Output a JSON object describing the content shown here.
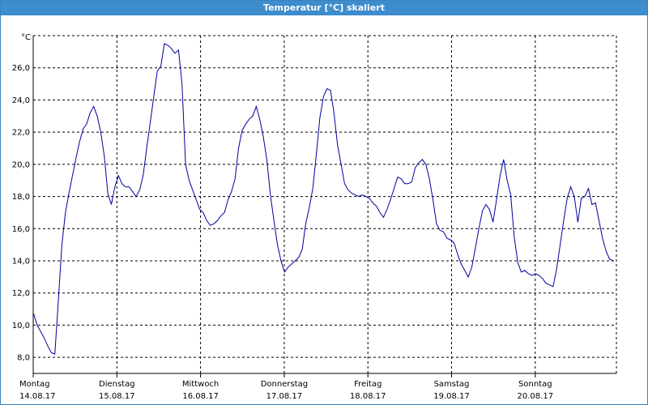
{
  "window": {
    "title": "Temperatur [°C] skaliert"
  },
  "chart_data": {
    "type": "line",
    "title": "Temperatur [°C] skaliert",
    "ylabel": "°C",
    "xlabel": "",
    "ylim": [
      7.0,
      28.0
    ],
    "y_ticks": [
      "8,0",
      "10,0",
      "12,0",
      "14,0",
      "16,0",
      "18,0",
      "20,0",
      "22,0",
      "24,0",
      "26,0"
    ],
    "y_tick_values": [
      8,
      10,
      12,
      14,
      16,
      18,
      20,
      22,
      24,
      26
    ],
    "x_ticks": [
      {
        "day": "Montag",
        "date": "14.08.17"
      },
      {
        "day": "Dienstag",
        "date": "15.08.17"
      },
      {
        "day": "Mittwoch",
        "date": "16.08.17"
      },
      {
        "day": "Donnerstag",
        "date": "17.08.17"
      },
      {
        "day": "Freitag",
        "date": "18.08.17"
      },
      {
        "day": "Samstag",
        "date": "19.08.17"
      },
      {
        "day": "Sonntag",
        "date": "20.08.17"
      }
    ],
    "grid": true,
    "line_color": "#0000a0",
    "series": [
      {
        "values": [
          10.7,
          10.0,
          9.6,
          9.2,
          8.7,
          8.3,
          8.2,
          11.5,
          15.0,
          17.0,
          18.2,
          19.3,
          20.4,
          21.4,
          22.2,
          22.5,
          23.2,
          23.6,
          23.0,
          22.0,
          20.5,
          18.2,
          17.5,
          18.6,
          19.3,
          18.8,
          18.6,
          18.6,
          18.3,
          18.0,
          18.4,
          19.3,
          21.0,
          22.6,
          24.2,
          25.8,
          26.1,
          27.5,
          27.4,
          27.2,
          26.9,
          27.1,
          25.0,
          20.0,
          19.0,
          18.4,
          17.8,
          17.2,
          17.0,
          16.5,
          16.2,
          16.3,
          16.5,
          16.8,
          17.0,
          17.8,
          18.3,
          19.1,
          21.0,
          22.1,
          22.5,
          22.8,
          23.0,
          23.6,
          22.8,
          21.7,
          20.3,
          18.1,
          16.5,
          15.0,
          14.0,
          13.3,
          13.6,
          13.8,
          14.0,
          14.2,
          14.7,
          16.3,
          17.3,
          18.5,
          20.6,
          22.9,
          24.2,
          24.7,
          24.6,
          23.2,
          21.2,
          20.0,
          18.8,
          18.4,
          18.2,
          18.1,
          18.0,
          18.1,
          18.0,
          17.9,
          17.6,
          17.4,
          17.0,
          16.7,
          17.2,
          17.8,
          18.5,
          19.2,
          19.1,
          18.8,
          18.8,
          18.9,
          19.8,
          20.1,
          20.3,
          20.0,
          19.1,
          17.8,
          16.3,
          15.9,
          15.8,
          15.4,
          15.3,
          15.1,
          14.4,
          13.8,
          13.4,
          13.0,
          13.6,
          14.8,
          16.0,
          17.1,
          17.5,
          17.2,
          16.4,
          17.8,
          19.3,
          20.3,
          19.0,
          18.1,
          15.5,
          13.9,
          13.3,
          13.4,
          13.2,
          13.1,
          13.2,
          13.1,
          12.9,
          12.6,
          12.5,
          12.4,
          13.5,
          15.0,
          16.5,
          17.9,
          18.6,
          18.0,
          16.4,
          17.9,
          18.0,
          18.5,
          17.5,
          17.6,
          16.5,
          15.4,
          14.6,
          14.1,
          14.0
        ]
      }
    ]
  }
}
